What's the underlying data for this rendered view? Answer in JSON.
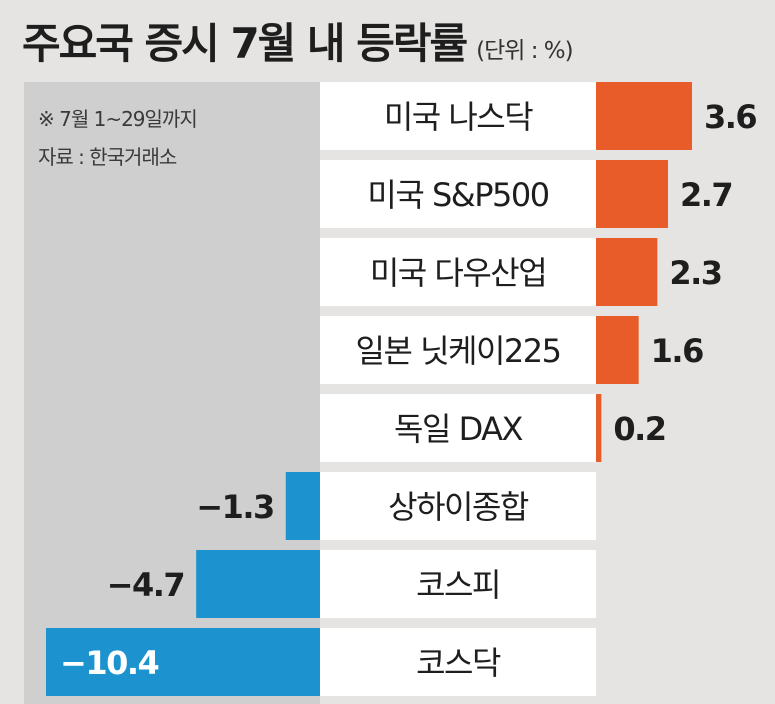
{
  "header": {
    "title": "주요국 증시 7월 내 등락률",
    "unit": "(단위 : %)"
  },
  "notes": {
    "period": "※ 7월 1~29일까지",
    "source": "자료 : 한국거래소"
  },
  "colors": {
    "positive": "#e85c2a",
    "negative": "#1c93cf",
    "panel": "#cfcfd0",
    "label_box": "#ffffff"
  },
  "chart_data": {
    "type": "bar",
    "orientation": "horizontal",
    "title": "주요국 증시 7월 내 등락률",
    "unit": "%",
    "categories": [
      "미국 나스닥",
      "미국 S&P500",
      "미국 다우산업",
      "일본 닛케이225",
      "독일 DAX",
      "상하이종합",
      "코스피",
      "코스닥"
    ],
    "values": [
      3.6,
      2.7,
      2.3,
      1.6,
      0.2,
      -1.3,
      -4.7,
      -10.4
    ],
    "value_labels": [
      "3.6",
      "2.7",
      "2.3",
      "1.6",
      "0.2",
      "−1.3",
      "−4.7",
      "−10.4"
    ],
    "xlim": [
      -10.4,
      3.6
    ],
    "xlabel": "",
    "ylabel": "",
    "grid": false
  }
}
